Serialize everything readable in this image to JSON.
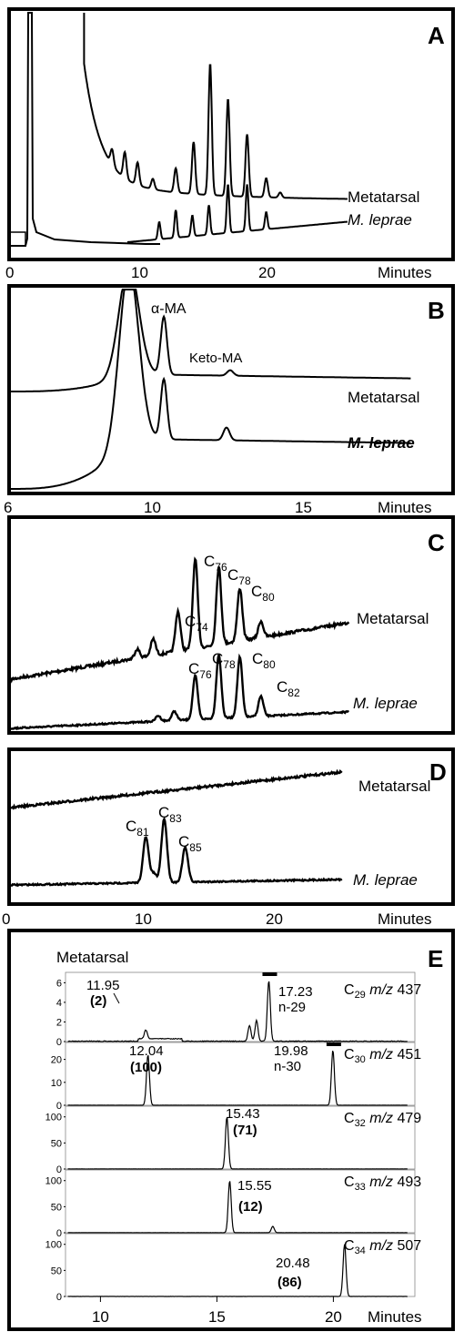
{
  "chart_data": [
    {
      "type": "line",
      "panel": "A",
      "xlabel": "Minutes",
      "x_ticks": [
        0,
        10,
        20
      ],
      "series": [
        {
          "name": "Metatarsal",
          "peaks": [
            {
              "x": 7.8,
              "height": 0.09
            },
            {
              "x": 8.8,
              "height": 0.15
            },
            {
              "x": 9.8,
              "height": 0.13
            },
            {
              "x": 11.0,
              "height": 0.06
            },
            {
              "x": 12.8,
              "height": 0.14
            },
            {
              "x": 14.2,
              "height": 0.3
            },
            {
              "x": 15.5,
              "height": 0.76
            },
            {
              "x": 16.9,
              "height": 0.56
            },
            {
              "x": 18.4,
              "height": 0.36
            },
            {
              "x": 19.9,
              "height": 0.11
            },
            {
              "x": 21.0,
              "height": 0.03
            }
          ]
        },
        {
          "name": "M. leprae",
          "peaks": [
            {
              "x": 11.5,
              "height": 0.1
            },
            {
              "x": 12.8,
              "height": 0.16
            },
            {
              "x": 14.1,
              "height": 0.12
            },
            {
              "x": 15.4,
              "height": 0.17
            },
            {
              "x": 16.9,
              "height": 0.28
            },
            {
              "x": 18.4,
              "height": 0.27
            },
            {
              "x": 19.9,
              "height": 0.1
            }
          ]
        }
      ]
    },
    {
      "type": "line",
      "panel": "B",
      "xlabel": "Minutes",
      "x_ticks": [
        6,
        10,
        15
      ],
      "series": [
        {
          "name": "Metatarsal",
          "peaks": [
            {
              "x": 10.2,
              "height": 0.53
            },
            {
              "x": 12.0,
              "height": 0.05
            }
          ]
        },
        {
          "name": "M. leprae",
          "peaks": [
            {
              "x": 10.2,
              "height": 0.66
            },
            {
              "x": 11.9,
              "height": 0.14
            }
          ]
        }
      ],
      "annotations": [
        "α-MA",
        "Keto-MA"
      ]
    },
    {
      "type": "line",
      "panel": "C",
      "series": [
        {
          "name": "Metatarsal",
          "labeled_peaks": [
            "C74",
            "C76",
            "C78",
            "C80"
          ]
        },
        {
          "name": "M. leprae",
          "labeled_peaks": [
            "C76",
            "C78",
            "C80",
            "C82"
          ]
        }
      ]
    },
    {
      "type": "line",
      "panel": "D",
      "xlabel": "Minutes",
      "x_ticks": [
        0,
        10,
        20
      ],
      "series": [
        {
          "name": "Metatarsal"
        },
        {
          "name": "M. leprae",
          "labeled_peaks": [
            "C81",
            "C83",
            "C85"
          ]
        }
      ]
    },
    {
      "type": "line",
      "panel": "E",
      "title": "Metatarsal",
      "xlabel": "Minutes",
      "x_ticks": [
        10,
        15,
        20
      ],
      "xlim": [
        8.5,
        23.5
      ],
      "traces": [
        {
          "carbon": "C",
          "sub": "29",
          "mz": "437",
          "yticks": [
            "6",
            "4",
            "2",
            "0"
          ],
          "ylim": [
            0,
            6.5
          ],
          "peaks": [
            {
              "x": 17.23,
              "y": 6.2
            },
            {
              "x": 11.95,
              "y": 0.9
            },
            {
              "x": 16.7,
              "y": 2.1
            },
            {
              "x": 16.4,
              "y": 1.6
            }
          ]
        },
        {
          "carbon": "C",
          "sub": "30",
          "mz": "451",
          "yticks": [
            "20",
            "10",
            "0"
          ],
          "ylim": [
            0,
            25
          ],
          "peaks": [
            {
              "x": 12.04,
              "y": 22
            },
            {
              "x": 19.98,
              "y": 24
            }
          ]
        },
        {
          "carbon": "C",
          "sub": "32",
          "mz": "479",
          "yticks": [
            "100",
            "50",
            "0"
          ],
          "ylim": [
            0,
            110
          ],
          "peaks": [
            {
              "x": 15.43,
              "y": 100
            }
          ]
        },
        {
          "carbon": "C",
          "sub": "33",
          "mz": "493",
          "yticks": [
            "100",
            "50",
            "0"
          ],
          "ylim": [
            0,
            110
          ],
          "peaks": [
            {
              "x": 15.55,
              "y": 100
            },
            {
              "x": 17.4,
              "y": 12
            }
          ]
        },
        {
          "carbon": "C",
          "sub": "34",
          "mz": "507",
          "yticks": [
            "100",
            "50",
            "0"
          ],
          "ylim": [
            0,
            110
          ],
          "peaks": [
            {
              "x": 20.48,
              "y": 100
            }
          ]
        }
      ],
      "annotations": {
        "t1_a": "11.95",
        "t1_b": "(2)",
        "t1_c": "17.23",
        "t1_d": "n-29",
        "t2_a": "12.04",
        "t2_b": "(100)",
        "t2_c": "19.98",
        "t2_d": "n-30",
        "t3_a": "15.43",
        "t3_b": "(71)",
        "t4_a": "15.55",
        "t4_b": "(12)",
        "t5_a": "20.48",
        "t5_b": "(86)"
      }
    }
  ],
  "labels": {
    "panelA": "A",
    "panelB": "B",
    "panelC": "C",
    "panelD": "D",
    "panelE": "E",
    "metatarsal": "Metatarsal",
    "mleprae": "M. leprae",
    "minutes": "Minutes",
    "alpha_ma": "α-MA",
    "keto_ma": "Keto-MA",
    "mz": "m/z",
    "C": "C",
    "c_subs": {
      "c74": "74",
      "c76": "76",
      "c78": "78",
      "c80": "80",
      "c82": "82",
      "c81": "81",
      "c83": "83",
      "c85": "85"
    }
  }
}
